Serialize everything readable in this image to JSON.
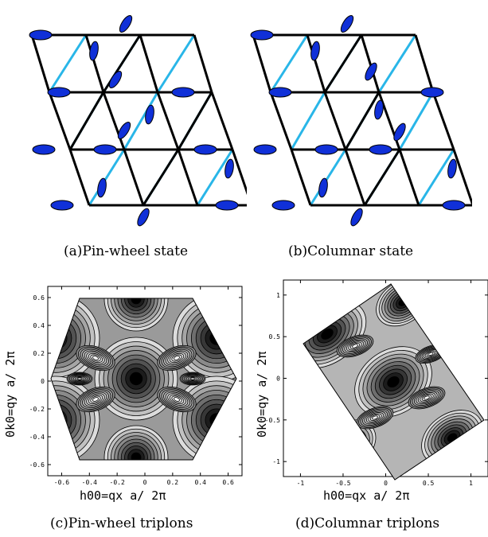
{
  "captions": {
    "a": "(a)Pin-wheel state",
    "b": "(b)Columnar state",
    "c": "(c)Pin-wheel triplons",
    "d": "(d)Columnar triplons"
  },
  "plots": {
    "c": {
      "xlabel": "h00=qx a/ 2π",
      "ylabel": "0k0=qy a/ 2π",
      "xticks": [
        "-0.6",
        "-0.4",
        "-0.2",
        "0",
        "0.2",
        "0.4",
        "0.6"
      ],
      "yticks": [
        "-0.6",
        "-0.4",
        "-0.2",
        "0",
        "0.2",
        "0.4",
        "0.6"
      ]
    },
    "d": {
      "xlabel": "h00=qx a/ 2π",
      "ylabel": "0k0=qy a/ 2π",
      "xticks": [
        "-1",
        "-0.5",
        "0",
        "0.5",
        "1"
      ],
      "yticks": [
        "-1",
        "-0.5",
        "0",
        "0.5",
        "1"
      ]
    }
  },
  "colors": {
    "bond_black": "#000000",
    "bond_cyan": "#29b6e8",
    "dimer": "#1030d8"
  }
}
